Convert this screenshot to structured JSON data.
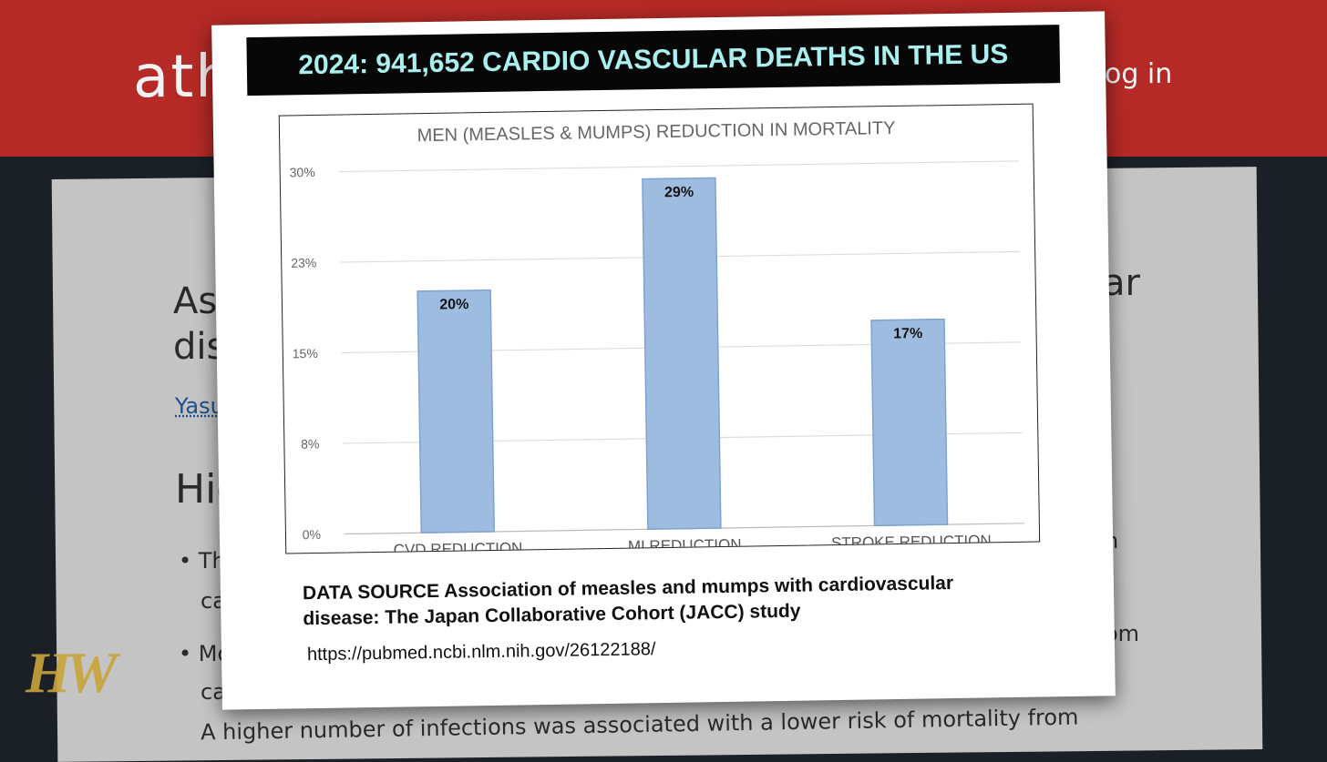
{
  "background": {
    "logo_text": "ath",
    "login_text": "og in",
    "title_line1": "Ass",
    "title_line2": "dis",
    "title_right": "ar",
    "author_text": "Yasu",
    "highlights_text": "Hig",
    "bullet1_start": "Th",
    "bullet1_cont": "ca",
    "bullet2_start": "Mo",
    "bullet2_cont": "ca",
    "right_n": "n",
    "right_om": "om",
    "bottom_text": "A higher number of infections was associated with a lower risk of mortality from",
    "watermark": "HW"
  },
  "banner": {
    "text": "2024: 941,652 CARDIO VASCULAR DEATHS IN THE US",
    "text_color": "#a9f0ee",
    "bg_color": "#070707"
  },
  "chart_data": {
    "type": "bar",
    "title": "MEN (MEASLES & MUMPS) REDUCTION IN MORTALITY",
    "categories": [
      "CVD REDUCTION",
      "MI REDUCTION",
      "STROKE REDUCTION"
    ],
    "values": [
      20,
      29,
      17
    ],
    "data_labels": [
      "20%",
      "29%",
      "17%"
    ],
    "y_ticks": [
      0,
      7.5,
      15,
      22.5,
      30
    ],
    "y_tick_labels": [
      "0%",
      "8%",
      "15%",
      "23%",
      "30%"
    ],
    "ylim": [
      0,
      30
    ],
    "grid": true,
    "bar_color": "#9dbce0",
    "bar_edge_color": "#7fa3cf"
  },
  "source": {
    "text": "DATA SOURCE Association of measles and mumps with cardiovascular disease: The Japan Collaborative Cohort (JACC) study",
    "url": "https://pubmed.ncbi.nlm.nih.gov/26122188/"
  }
}
